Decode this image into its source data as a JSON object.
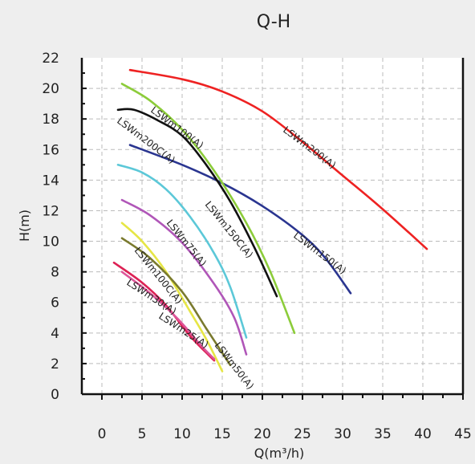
{
  "chart_data": {
    "type": "line",
    "title": "Q-H",
    "xlabel": "Q(m³/h)",
    "ylabel": "H(m)",
    "xlim": [
      -2.5,
      45
    ],
    "ylim": [
      0,
      22
    ],
    "x_ticks": [
      0,
      5,
      10,
      15,
      20,
      25,
      30,
      35,
      40,
      45
    ],
    "y_ticks": [
      0,
      2,
      4,
      6,
      8,
      10,
      12,
      14,
      16,
      18,
      20,
      22
    ],
    "grid": true,
    "series": [
      {
        "name": "LSWm200(A)",
        "color": "#ee2222",
        "points": [
          [
            3.5,
            21.2
          ],
          [
            10,
            20.6
          ],
          [
            15,
            19.8
          ],
          [
            20,
            18.5
          ],
          [
            25,
            16.5
          ],
          [
            30,
            14.3
          ],
          [
            35,
            12.1
          ],
          [
            40.5,
            9.5
          ]
        ]
      },
      {
        "name": "LSWm150(A)",
        "color": "#2a3590",
        "points": [
          [
            3.5,
            16.3
          ],
          [
            10,
            15.0
          ],
          [
            15,
            13.8
          ],
          [
            20,
            12.3
          ],
          [
            25,
            10.4
          ],
          [
            28,
            8.8
          ],
          [
            31,
            6.6
          ]
        ]
      },
      {
        "name": "LSWm100(A)",
        "color": "#8ccc3a",
        "points": [
          [
            2.5,
            20.3
          ],
          [
            6,
            19.2
          ],
          [
            10,
            17.3
          ],
          [
            14,
            14.6
          ],
          [
            18,
            11.2
          ],
          [
            21,
            8.0
          ],
          [
            24,
            4.0
          ]
        ]
      },
      {
        "name": "LSWm200C(A)",
        "color": "#111111",
        "points": [
          [
            2,
            18.6
          ],
          [
            4,
            18.6
          ],
          [
            7,
            17.9
          ],
          [
            10,
            16.9
          ],
          [
            13,
            15.0
          ],
          [
            16,
            12.6
          ],
          [
            19,
            9.6
          ],
          [
            21.8,
            6.4
          ]
        ]
      },
      {
        "name": "LSWm150C(A)",
        "color": "#5cc8d8",
        "points": [
          [
            2,
            15.0
          ],
          [
            5,
            14.5
          ],
          [
            8,
            13.4
          ],
          [
            11,
            11.6
          ],
          [
            14,
            9.2
          ],
          [
            16,
            7.0
          ],
          [
            18,
            3.7
          ]
        ]
      },
      {
        "name": "LSWm75(A)",
        "color": "#b056b8",
        "points": [
          [
            2.5,
            12.7
          ],
          [
            6,
            11.7
          ],
          [
            10,
            9.9
          ],
          [
            14,
            7.2
          ],
          [
            16.5,
            5.0
          ],
          [
            18,
            2.6
          ]
        ]
      },
      {
        "name": "LSWm100C(A)",
        "color": "#e6e645",
        "points": [
          [
            2.5,
            11.2
          ],
          [
            5,
            10.0
          ],
          [
            8,
            8.0
          ],
          [
            11,
            5.4
          ],
          [
            13,
            3.6
          ],
          [
            15,
            1.5
          ]
        ]
      },
      {
        "name": "LSWm50(A)",
        "color": "#7a7a2e",
        "points": [
          [
            2.5,
            10.2
          ],
          [
            6,
            8.9
          ],
          [
            10,
            6.7
          ],
          [
            13,
            4.3
          ],
          [
            16,
            1.9
          ]
        ]
      },
      {
        "name": "LSWm30(A)",
        "color": "#dd2255",
        "points": [
          [
            1.5,
            8.6
          ],
          [
            5,
            7.3
          ],
          [
            8,
            5.8
          ],
          [
            11,
            3.8
          ],
          [
            14,
            2.2
          ]
        ]
      },
      {
        "name": "LSWm25(A)",
        "color": "#dd5599",
        "points": [
          [
            2.5,
            8.0
          ],
          [
            6,
            6.6
          ],
          [
            9.5,
            4.9
          ],
          [
            12.5,
            3.1
          ],
          [
            14,
            2.3
          ]
        ]
      }
    ],
    "labels": [
      {
        "text": "LSWm200(A)",
        "x": 22.5,
        "y": 17.2,
        "angle": 37
      },
      {
        "text": "LSWm150(A)",
        "x": 23.8,
        "y": 10.3,
        "angle": 37
      },
      {
        "text": "LSWm100(A)",
        "x": 6.0,
        "y": 18.5,
        "angle": 37
      },
      {
        "text": "LSWm200C(A)",
        "x": 1.8,
        "y": 17.8,
        "angle": 37
      },
      {
        "text": "LSWm150C(A)",
        "x": 12.8,
        "y": 12.4,
        "angle": 51
      },
      {
        "text": "LSWm75(A)",
        "x": 8.0,
        "y": 11.2,
        "angle": 51
      },
      {
        "text": "LSWm100C(A)",
        "x": 4.0,
        "y": 9.4,
        "angle": 51
      },
      {
        "text": "LSWm50(A)",
        "x": 14.0,
        "y": 3.2,
        "angle": 52
      },
      {
        "text": "LSWm30(A)",
        "x": 3.0,
        "y": 7.2,
        "angle": 33
      },
      {
        "text": "LSWm25(A)",
        "x": 7.0,
        "y": 5.0,
        "angle": 33
      }
    ]
  }
}
